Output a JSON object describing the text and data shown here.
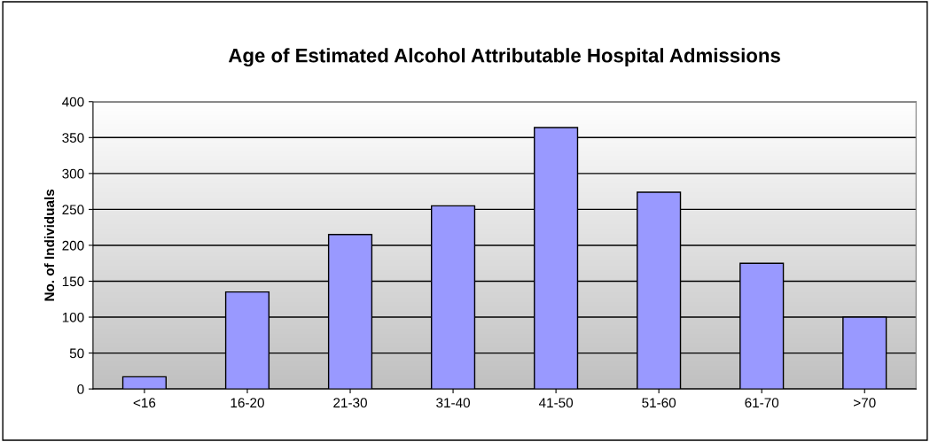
{
  "chart_data": {
    "type": "bar",
    "title": "Age of Estimated Alcohol Attributable Hospital Admissions",
    "ylabel": "No. of Individuals",
    "categories": [
      "<16",
      "16-20",
      "21-30",
      "31-40",
      "41-50",
      "51-60",
      "61-70",
      ">70"
    ],
    "values": [
      17,
      135,
      215,
      255,
      364,
      274,
      175,
      100
    ],
    "color": "#9999ff",
    "ylim": [
      0,
      400
    ],
    "yticks": [
      0,
      50,
      100,
      150,
      200,
      250,
      300,
      350,
      400
    ],
    "grid": "y",
    "legend": false
  }
}
